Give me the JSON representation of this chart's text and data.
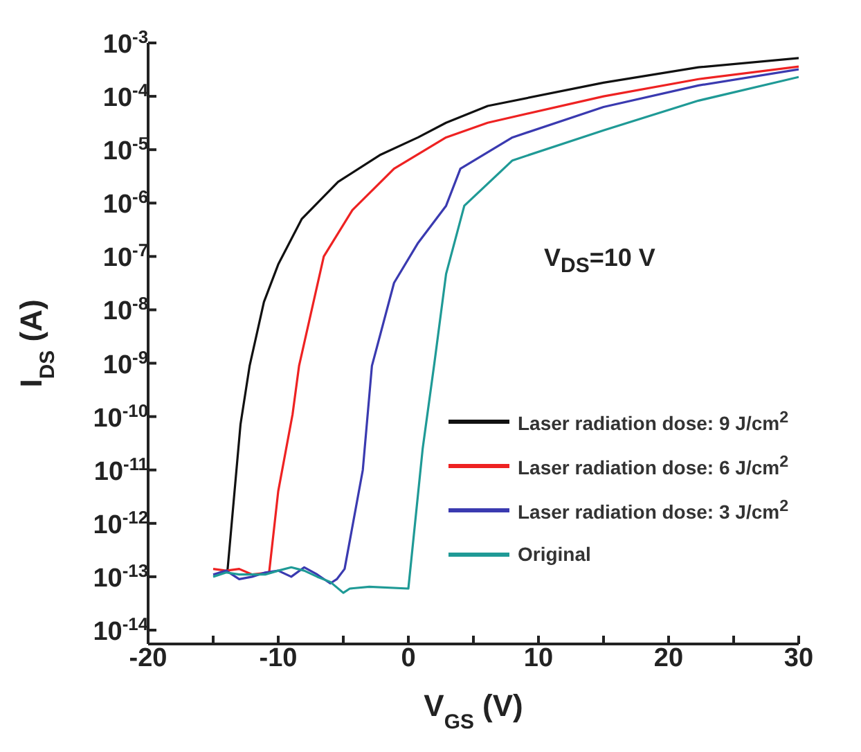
{
  "chart_data": {
    "type": "line",
    "xlabel": "V$_{GS}$ (V)",
    "ylabel": "I$_{DS}$ (A)",
    "log": "y",
    "legend": "bottom right",
    "annotations": [
      "V$_{DS}$=10 V"
    ],
    "xlim": [
      -20,
      30
    ],
    "xticks": [
      -20,
      {
        "value": -15,
        "label": null
      },
      -10,
      {
        "value": -5,
        "label": null
      },
      0,
      {
        "value": 5,
        "label": null
      },
      10,
      {
        "value": 15,
        "label": null
      },
      20,
      {
        "value": 25,
        "label": null
      },
      30
    ],
    "ylim": [
      5.5e-15,
      0.001
    ],
    "yticks": [
      {
        "value": 0.001,
        "label": "10$^{-3}$"
      },
      {
        "value": 0.0001,
        "label": "10$^{-4}$"
      },
      {
        "value": 1e-05,
        "label": "10$^{-5}$"
      },
      {
        "value": 1e-06,
        "label": "10$^{-6}$"
      },
      {
        "value": 1e-07,
        "label": "10$^{-7}$"
      },
      {
        "value": 1e-08,
        "label": "10$^{-8}$"
      },
      {
        "value": 1e-09,
        "label": "10$^{-9}$"
      },
      {
        "value": 1e-10,
        "label": "10$^{-10}$"
      },
      {
        "value": 1e-11,
        "label": "10$^{-11}$"
      },
      {
        "value": 1e-12,
        "label": "10$^{-12}$"
      },
      {
        "value": 1e-13,
        "label": "10$^{-13}$"
      },
      {
        "value": 1e-14,
        "label": "10$^{-14}$"
      }
    ],
    "series": [
      {
        "name": "Laser radiation dose: 9 J/cm$^{2}$",
        "color": "#111111",
        "x": [
          -14,
          -13.9,
          -12.9,
          -12.2,
          -11.1,
          -10,
          -8.2,
          -5.4,
          -2.2,
          0.75,
          2.9,
          6.1,
          15,
          22.3,
          30
        ],
        "values": [
          1.3e-13,
          1.3e-13,
          7.1e-11,
          8.9e-10,
          1.4e-08,
          7.1e-08,
          5e-07,
          2.5e-06,
          7.9e-06,
          1.7e-05,
          3.2e-05,
          6.6e-05,
          0.00018,
          0.00035,
          0.00052
        ]
      },
      {
        "name": "Laser radiation dose: 6 J/cm$^{2}$",
        "color": "#ee2222",
        "x": [
          -15,
          -14,
          -13,
          -12,
          -10.7,
          -10,
          -8.9,
          -8.4,
          -6.5,
          -4.3,
          -1.1,
          2.9,
          6.1,
          15,
          22.3,
          30
        ],
        "values": [
          1.4e-13,
          1.3e-13,
          1.4e-13,
          1.1e-13,
          1.2e-13,
          4e-12,
          1.1e-10,
          8.9e-10,
          1e-07,
          7.4e-07,
          4.4e-06,
          1.7e-05,
          3.2e-05,
          0.0001,
          0.00021,
          0.00036
        ]
      },
      {
        "name": "Laser radiation dose: 3 J/cm$^{2}$",
        "color": "#3a3ab0",
        "x": [
          -15,
          -14,
          -13,
          -12,
          -11,
          -10,
          -9,
          -8,
          -7,
          -6,
          -5.5,
          -4.9,
          -3.5,
          -2.8,
          -1.1,
          0.75,
          2.9,
          4,
          8,
          15,
          22.3,
          30
        ],
        "values": [
          1.1e-13,
          1.3e-13,
          9e-14,
          1e-13,
          1.2e-13,
          1.3e-13,
          1e-13,
          1.5e-13,
          1.1e-13,
          7.5e-14,
          9e-14,
          1.4e-13,
          1e-11,
          8.9e-10,
          3.2e-08,
          1.8e-07,
          8.9e-07,
          4.4e-06,
          1.7e-05,
          6.3e-05,
          0.00016,
          0.00032
        ]
      },
      {
        "name": "Original",
        "color": "#1f9a96",
        "x": [
          -15,
          -14,
          -13,
          -11,
          -10,
          -9,
          -8,
          -7,
          -6,
          -5,
          -4.5,
          -3,
          0,
          1.1,
          2,
          2.9,
          4.3,
          8,
          15,
          22.3,
          30
        ],
        "values": [
          1e-13,
          1.2e-13,
          1.1e-13,
          1.1e-13,
          1.3e-13,
          1.5e-13,
          1.3e-13,
          1e-13,
          8e-14,
          5e-14,
          6e-14,
          6.5e-14,
          6e-14,
          2.5e-11,
          1e-09,
          4.7e-08,
          8.9e-07,
          6.3e-06,
          2.3e-05,
          8.3e-05,
          0.00023
        ]
      }
    ]
  }
}
